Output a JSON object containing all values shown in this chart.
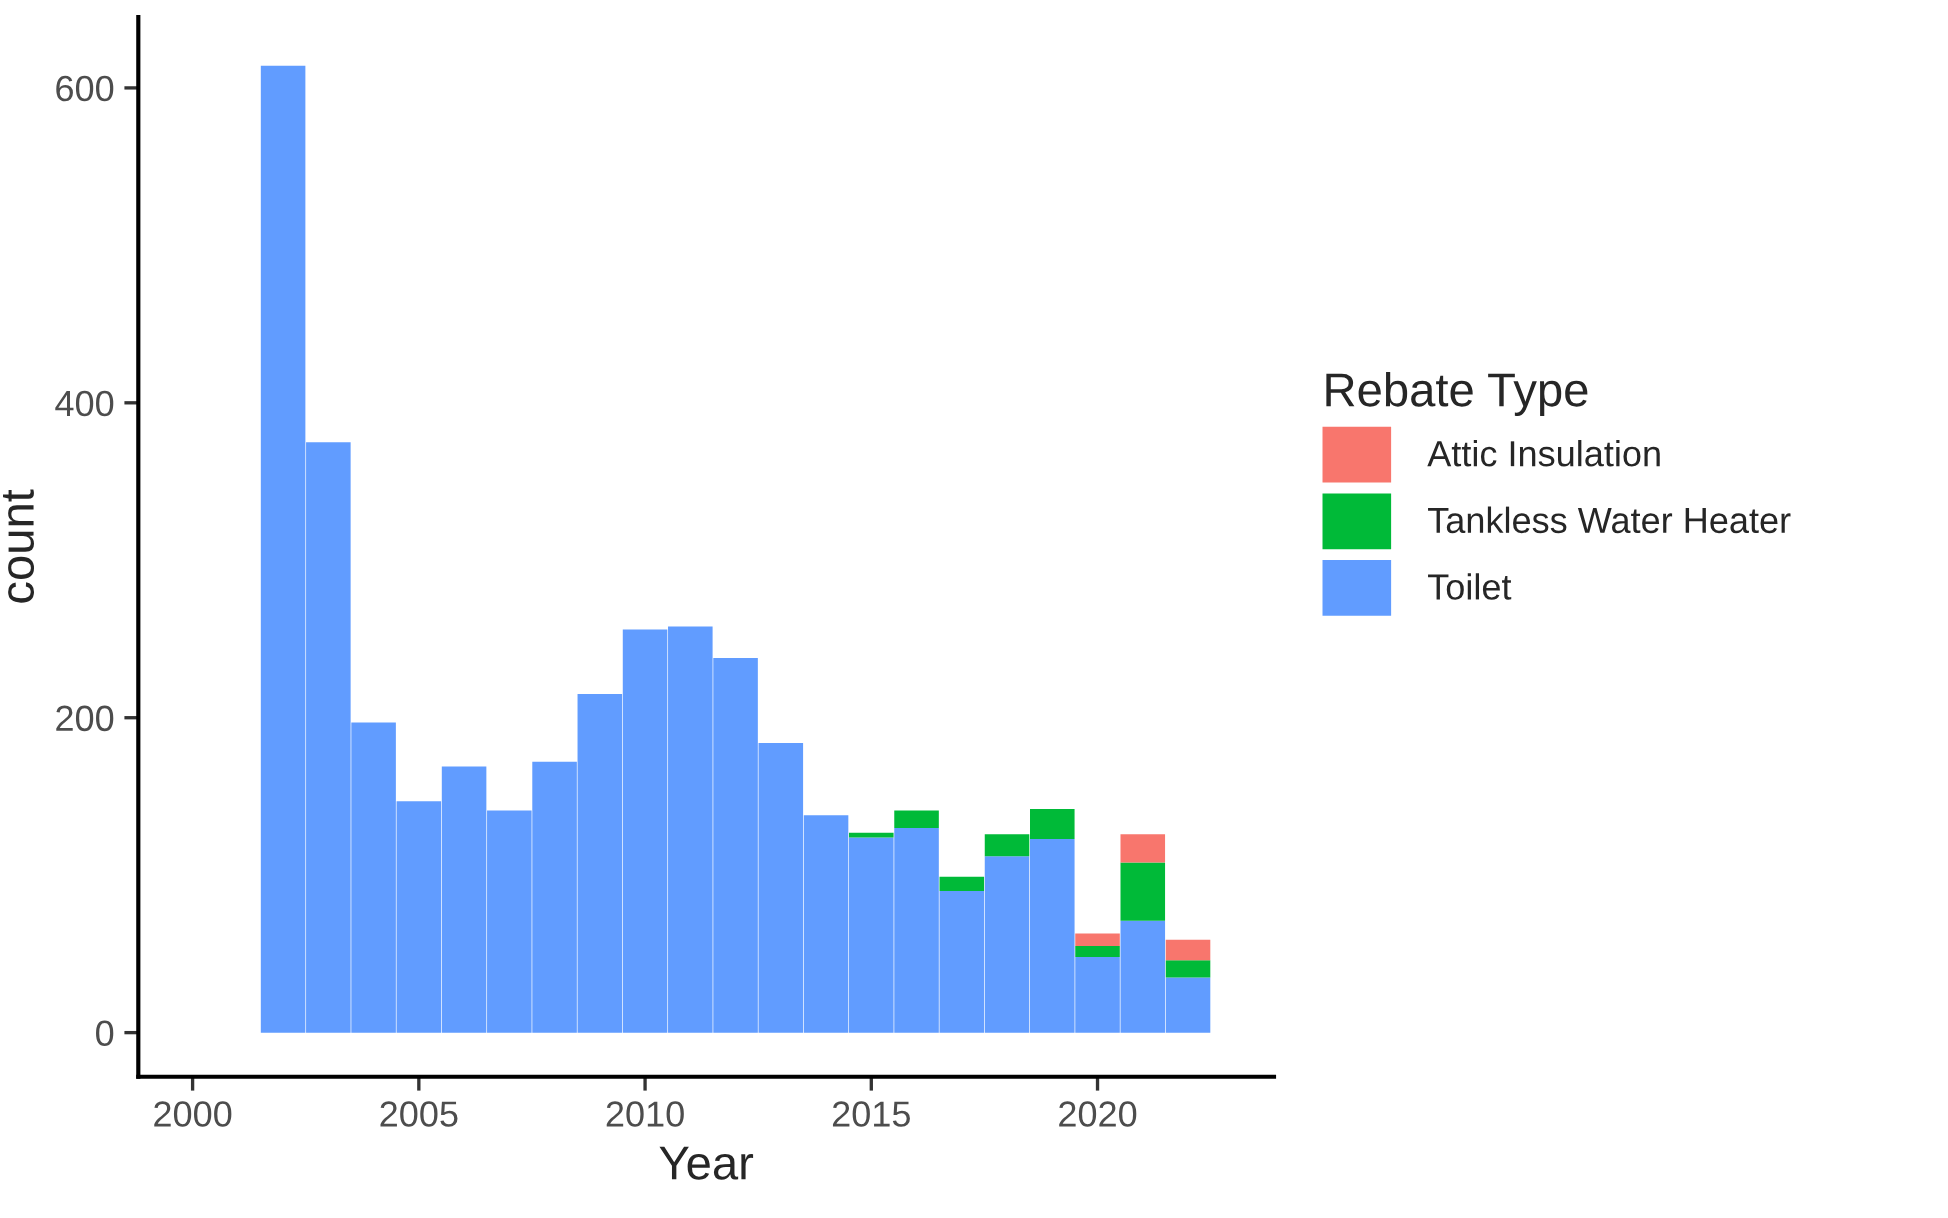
{
  "chart_data": {
    "type": "bar",
    "xlabel": "Year",
    "ylabel": "count",
    "legend_title": "Rebate Type",
    "stacked": true,
    "x": [
      2002,
      2003,
      2004,
      2005,
      2006,
      2007,
      2008,
      2009,
      2010,
      2011,
      2012,
      2013,
      2014,
      2015,
      2016,
      2017,
      2018,
      2019,
      2020,
      2021,
      2022
    ],
    "series": [
      {
        "name": "Toilet",
        "color": "#619cff",
        "values": [
          614,
          375,
          197,
          147,
          169,
          141,
          172,
          215,
          256,
          258,
          238,
          184,
          138,
          124,
          130,
          90,
          112,
          123,
          48,
          71,
          35
        ]
      },
      {
        "name": "Tankless Water Heater",
        "color": "#00ba38",
        "values": [
          null,
          null,
          null,
          null,
          null,
          null,
          null,
          null,
          null,
          null,
          null,
          null,
          null,
          3,
          11,
          9,
          14,
          19,
          7,
          37,
          11
        ]
      },
      {
        "name": "Attic Insulation",
        "color": "#f8766d",
        "values": [
          null,
          null,
          null,
          null,
          null,
          null,
          null,
          null,
          null,
          null,
          null,
          null,
          null,
          null,
          null,
          null,
          null,
          null,
          8,
          18,
          13
        ]
      }
    ],
    "xlim": [
      1998.8,
      2023.9
    ],
    "ylim": [
      -28,
      645
    ],
    "xticks": [
      2000,
      2005,
      2010,
      2015,
      2020
    ],
    "yticks": [
      0,
      200,
      400,
      600
    ],
    "legend": "right"
  }
}
